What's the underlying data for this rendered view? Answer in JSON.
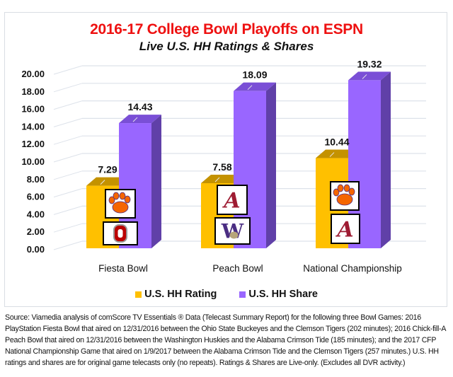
{
  "chart_data": {
    "type": "bar",
    "variant": "3d-clustered-column",
    "title": "2016-17 College Bowl Playoffs on ESPN",
    "subtitle": "Live U.S. HH Ratings & Shares",
    "categories": [
      "Fiesta Bowl",
      "Peach Bowl",
      "National Championship"
    ],
    "series": [
      {
        "name": "U.S. HH Rating",
        "values": [
          7.29,
          7.58,
          10.44
        ],
        "labels": [
          "7.29",
          "7.58",
          "10.44"
        ],
        "color": "#ffc000",
        "top_color": "#c49200"
      },
      {
        "name": "U.S. HH Share",
        "values": [
          14.43,
          18.09,
          19.32
        ],
        "labels": [
          "14.43",
          "18.09",
          "19.32"
        ],
        "color": "#9966ff",
        "top_color": "#7a4fd6",
        "side_color": "#6040a8"
      }
    ],
    "yticks": [
      "0.00",
      "2.00",
      "4.00",
      "6.00",
      "8.00",
      "10.00",
      "12.00",
      "14.00",
      "16.00",
      "18.00",
      "20.00"
    ],
    "ylim": [
      0,
      20
    ],
    "grid": true,
    "legend": "bottom",
    "xlabel": "",
    "ylabel": "",
    "team_logos": [
      {
        "category": "Fiesta Bowl",
        "logos": [
          "clemson-paw-logo",
          "ohio-state-o-logo"
        ]
      },
      {
        "category": "Peach Bowl",
        "logos": [
          "alabama-a-logo",
          "washington-w-logo"
        ]
      },
      {
        "category": "National Championship",
        "logos": [
          "clemson-paw-logo",
          "alabama-a-logo"
        ]
      }
    ]
  },
  "source_note": "Source: Viamedia analysis of comScore TV Essentials ® Data (Telecast Summary Report) for the following three Bowl Games: 2016 PlayStation Fiesta Bowl that aired on 12/31/2016 between the Ohio State Buckeyes and the Clemson Tigers (202 minutes); 2016 Chick-fill-A Peach Bowl that aired on 12/31/2016 between the Washington Huskies and the Alabama Crimson Tide (185 minutes); and the 2017 CFP National Championship Game that aired on 1/9/2017 between the Alabama Crimson Tide and the Clemson Tigers (257 minutes.) U.S. HH ratings and shares are for original game telecasts only (no repeats). Ratings & Shares are Live-only. (Excludes all DVR activity.)"
}
